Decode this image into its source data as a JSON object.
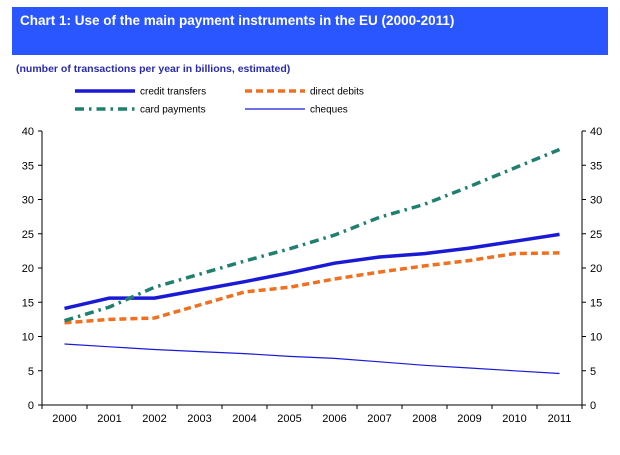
{
  "chart_data": {
    "type": "line",
    "title": "Chart 1:  Use of the main payment instruments in the EU (2000-2011)",
    "subtitle": "(number of transactions per year in billions, estimated)",
    "x": [
      "2000",
      "2001",
      "2002",
      "2003",
      "2004",
      "2005",
      "2006",
      "2007",
      "2008",
      "2009",
      "2010",
      "2011"
    ],
    "ylim": [
      0,
      40
    ],
    "yticks": [
      "0",
      "5",
      "10",
      "15",
      "20",
      "25",
      "30",
      "35",
      "40"
    ],
    "grid": false,
    "legend_position": "top",
    "series": [
      {
        "name": "credit transfers",
        "color": "#1a1ad6",
        "style": "solid-thick",
        "values": [
          14.1,
          15.6,
          15.6,
          16.8,
          18.0,
          19.3,
          20.7,
          21.6,
          22.1,
          22.9,
          23.9,
          24.9
        ]
      },
      {
        "name": "direct debits",
        "color": "#f07020",
        "style": "dashed-thick",
        "values": [
          12.0,
          12.5,
          12.7,
          14.6,
          16.5,
          17.2,
          18.4,
          19.4,
          20.3,
          21.1,
          22.1,
          22.2
        ]
      },
      {
        "name": "card payments",
        "color": "#1f8070",
        "style": "dashdot-thick",
        "values": [
          12.3,
          14.3,
          17.2,
          19.1,
          21.0,
          22.8,
          24.8,
          27.4,
          29.3,
          31.9,
          34.6,
          37.3
        ]
      },
      {
        "name": "cheques",
        "color": "#1a1ad6",
        "style": "solid-thin",
        "values": [
          8.9,
          8.5,
          8.1,
          7.8,
          7.5,
          7.1,
          6.8,
          6.3,
          5.8,
          5.4,
          5.0,
          4.6
        ]
      }
    ]
  }
}
